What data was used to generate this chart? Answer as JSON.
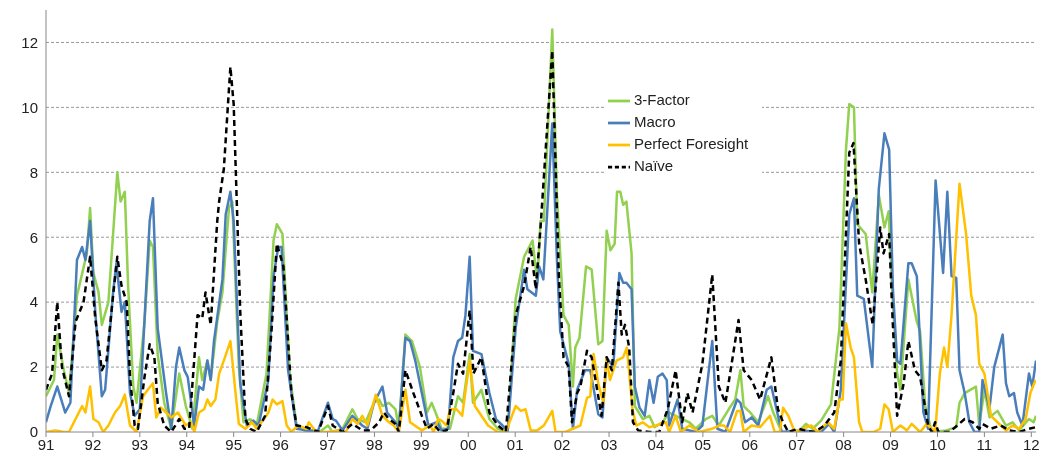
{
  "chart_data": {
    "type": "line",
    "xlim": [
      1991,
      2012.1
    ],
    "ylim": [
      0,
      13
    ],
    "xticks": [
      {
        "value": 1991,
        "label": "91"
      },
      {
        "value": 1992,
        "label": "92"
      },
      {
        "value": 1993,
        "label": "93"
      },
      {
        "value": 1994,
        "label": "94"
      },
      {
        "value": 1995,
        "label": "95"
      },
      {
        "value": 1996,
        "label": "96"
      },
      {
        "value": 1997,
        "label": "97"
      },
      {
        "value": 1998,
        "label": "98"
      },
      {
        "value": 1999,
        "label": "99"
      },
      {
        "value": 2000,
        "label": "00"
      },
      {
        "value": 2001,
        "label": "01"
      },
      {
        "value": 2002,
        "label": "02"
      },
      {
        "value": 2003,
        "label": "03"
      },
      {
        "value": 2004,
        "label": "04"
      },
      {
        "value": 2005,
        "label": "05"
      },
      {
        "value": 2006,
        "label": "06"
      },
      {
        "value": 2007,
        "label": "07"
      },
      {
        "value": 2008,
        "label": "08"
      },
      {
        "value": 2009,
        "label": "09"
      },
      {
        "value": 2010,
        "label": "10"
      },
      {
        "value": 2011,
        "label": "11"
      },
      {
        "value": 2012,
        "label": "12"
      }
    ],
    "yticks": [
      0,
      2,
      4,
      6,
      8,
      10,
      12
    ],
    "grid": "y",
    "legend": "top",
    "marker": "none",
    "series": [
      {
        "name": "3-Factor",
        "color": "#92d050",
        "line_style": "solid",
        "x": [
          1991.0,
          1991.17,
          1991.24,
          1991.38,
          1991.49,
          1991.66,
          1991.87,
          1991.94,
          1992.01,
          1992.12,
          1992.19,
          1992.33,
          1992.43,
          1992.52,
          1992.59,
          1992.68,
          1992.75,
          1992.86,
          1992.93,
          1993.1,
          1993.21,
          1993.28,
          1993.38,
          1993.52,
          1993.67,
          1993.84,
          1993.98,
          1994.12,
          1994.26,
          1994.33,
          1994.44,
          1994.51,
          1994.65,
          1994.76,
          1994.9,
          1994.97,
          1995.11,
          1995.21,
          1995.35,
          1995.49,
          1995.7,
          1995.85,
          1995.92,
          1996.04,
          1996.2,
          1996.34,
          1996.55,
          1996.83,
          1997.01,
          1997.11,
          1997.32,
          1997.53,
          1997.64,
          1997.81,
          1997.99,
          1998.1,
          1998.17,
          1998.31,
          1998.45,
          1998.52,
          1998.66,
          1998.8,
          1998.97,
          1999.12,
          1999.22,
          1999.33,
          1999.43,
          1999.61,
          1999.78,
          1999.89,
          2000.03,
          2000.1,
          2000.28,
          2000.45,
          2000.63,
          2000.84,
          2001.01,
          2001.19,
          2001.37,
          2001.47,
          2001.54,
          2001.61,
          2001.79,
          2001.89,
          2002.03,
          2002.14,
          2002.23,
          2002.28,
          2002.37,
          2002.51,
          2002.63,
          2002.77,
          2002.86,
          2002.95,
          2003.03,
          2003.12,
          2003.17,
          2003.24,
          2003.3,
          2003.37,
          2003.48,
          2003.55,
          2003.72,
          2003.86,
          2003.97,
          2004.14,
          2004.28,
          2004.42,
          2004.71,
          2004.85,
          2005.06,
          2005.2,
          2005.34,
          2005.55,
          2005.69,
          2005.8,
          2005.87,
          2006.01,
          2006.18,
          2006.39,
          2006.5,
          2006.68,
          2007.03,
          2007.2,
          2007.34,
          2007.52,
          2007.73,
          2007.91,
          2008.05,
          2008.12,
          2008.22,
          2008.29,
          2008.47,
          2008.61,
          2008.75,
          2008.87,
          2008.96,
          2009.03,
          2009.14,
          2009.21,
          2009.38,
          2009.56,
          2009.63,
          2009.74,
          2009.88,
          2010.19,
          2010.4,
          2010.47,
          2010.58,
          2010.82,
          2010.89,
          2011.0,
          2011.11,
          2011.28,
          2011.46,
          2011.6,
          2011.74,
          2011.95,
          2012.05,
          2012.1
        ],
        "values": [
          1.1,
          1.6,
          3.0,
          1.9,
          1.2,
          4.2,
          5.5,
          6.9,
          4.9,
          4.3,
          3.3,
          4.0,
          6.1,
          8.0,
          7.1,
          7.4,
          4.5,
          1.4,
          0.9,
          3.4,
          5.9,
          5.7,
          2.4,
          0.9,
          0.1,
          1.8,
          0.8,
          0.1,
          2.3,
          1.6,
          2.2,
          1.6,
          3.4,
          4.3,
          6.9,
          7.1,
          2.0,
          0.3,
          0.4,
          0.2,
          1.8,
          5.9,
          6.4,
          6.1,
          1.7,
          0.2,
          0,
          0,
          0.2,
          0,
          0.1,
          0.7,
          0.4,
          0.3,
          0.9,
          1.0,
          0.8,
          0.9,
          0.7,
          0.1,
          3.0,
          2.8,
          2.0,
          0.6,
          0.9,
          0.5,
          0.1,
          0.1,
          1.1,
          0.9,
          2.4,
          0.9,
          1.3,
          0.4,
          0.1,
          0,
          4.1,
          5.4,
          5.9,
          4.6,
          6.5,
          6.5,
          12.4,
          7.3,
          3.6,
          3.3,
          1.4,
          2.6,
          2.9,
          5.1,
          5.0,
          2.7,
          2.8,
          6.2,
          5.6,
          5.8,
          7.4,
          7.4,
          7.0,
          7.1,
          5.5,
          0.8,
          0.4,
          0.5,
          0.15,
          0.3,
          0.6,
          0.5,
          0.3,
          0.1,
          0.4,
          0.5,
          0.2,
          0.7,
          1.0,
          1.9,
          0.8,
          0.6,
          0.3,
          1.1,
          0.6,
          0,
          0,
          0.25,
          0.1,
          0.35,
          0.85,
          3.2,
          8.7,
          10.1,
          10.0,
          6.4,
          6.1,
          4.3,
          7.3,
          6.3,
          6.8,
          4.5,
          1.8,
          1.3,
          4.7,
          3.4,
          3.1,
          0.8,
          0,
          0.05,
          0.15,
          0.9,
          1.2,
          1.4,
          0.2,
          1.3,
          0.45,
          0.65,
          0.2,
          0.3,
          0.05,
          0.4,
          0.3,
          0.5
        ]
      },
      {
        "name": "Macro",
        "color": "#4a7ebb",
        "line_style": "solid",
        "x": [
          1991.0,
          1991.1,
          1991.24,
          1991.41,
          1991.52,
          1991.66,
          1991.77,
          1991.84,
          1991.94,
          1992.05,
          1992.19,
          1992.26,
          1992.43,
          1992.5,
          1992.61,
          1992.68,
          1992.79,
          1992.89,
          1993.0,
          1993.21,
          1993.28,
          1993.38,
          1993.56,
          1993.67,
          1993.77,
          1993.84,
          1993.95,
          1994.02,
          1994.16,
          1994.26,
          1994.35,
          1994.44,
          1994.51,
          1994.58,
          1994.76,
          1994.83,
          1994.93,
          1995.0,
          1995.14,
          1995.28,
          1995.42,
          1995.53,
          1995.74,
          1995.85,
          1995.95,
          1996.02,
          1996.16,
          1996.34,
          1996.55,
          1996.8,
          1997.01,
          1997.11,
          1997.18,
          1997.32,
          1997.53,
          1997.74,
          1997.85,
          1997.99,
          1998.17,
          1998.27,
          1998.45,
          1998.52,
          1998.66,
          1998.76,
          1998.87,
          1999.08,
          1999.15,
          1999.33,
          1999.43,
          1999.57,
          1999.68,
          1999.78,
          1999.87,
          1999.94,
          2000.03,
          2000.1,
          2000.28,
          2000.45,
          2000.59,
          2000.73,
          2000.84,
          2001.01,
          2001.19,
          2001.26,
          2001.44,
          2001.51,
          2001.6,
          2001.79,
          2001.89,
          2001.96,
          2002.14,
          2002.23,
          2002.32,
          2002.49,
          2002.6,
          2002.77,
          2002.86,
          2002.95,
          2003.09,
          2003.22,
          2003.3,
          2003.37,
          2003.48,
          2003.55,
          2003.65,
          2003.76,
          2003.86,
          2003.95,
          2004.04,
          2004.14,
          2004.23,
          2004.28,
          2004.46,
          2004.56,
          2004.85,
          2004.99,
          2005.2,
          2005.31,
          2005.48,
          2005.73,
          2005.8,
          2005.9,
          2006.04,
          2006.18,
          2006.36,
          2006.46,
          2006.68,
          2007.1,
          2007.52,
          2007.69,
          2007.8,
          2007.94,
          2008.12,
          2008.22,
          2008.29,
          2008.43,
          2008.61,
          2008.75,
          2008.87,
          2008.97,
          2009.05,
          2009.14,
          2009.21,
          2009.38,
          2009.45,
          2009.56,
          2009.7,
          2009.8,
          2009.96,
          2010.12,
          2010.21,
          2010.3,
          2010.4,
          2010.47,
          2010.58,
          2010.68,
          2010.79,
          2010.89,
          2010.96,
          2011.11,
          2011.21,
          2011.39,
          2011.46,
          2011.53,
          2011.63,
          2011.7,
          2011.81,
          2011.95,
          2012.02,
          2012.1
        ],
        "values": [
          0.3,
          0.8,
          1.4,
          0.6,
          0.9,
          5.3,
          5.7,
          5.3,
          6.5,
          3.7,
          1.1,
          1.3,
          4.3,
          5.2,
          3.7,
          4.0,
          1.2,
          0.5,
          0.7,
          6.5,
          7.2,
          3.2,
          1.2,
          0.1,
          2.0,
          2.6,
          1.9,
          1.7,
          0.2,
          1.4,
          1.3,
          2.2,
          1.6,
          2.8,
          4.7,
          6.7,
          7.4,
          6.5,
          1.5,
          0.2,
          0.35,
          0.2,
          1.6,
          4.8,
          5.7,
          5.7,
          1.9,
          0.1,
          0.05,
          0.05,
          0.9,
          0.4,
          0.35,
          0.05,
          0.5,
          0.2,
          0.1,
          0.9,
          1.4,
          0.6,
          0.3,
          0.1,
          2.9,
          2.8,
          2.2,
          0.7,
          0.2,
          0.3,
          0.05,
          0.1,
          2.3,
          2.8,
          2.9,
          3.6,
          5.4,
          2.5,
          2.4,
          1.2,
          0.4,
          0.2,
          0.05,
          3.2,
          5.0,
          4.4,
          4.2,
          5.1,
          4.7,
          9.5,
          5.3,
          3.1,
          2.1,
          0.1,
          1.3,
          1.9,
          1.9,
          0.55,
          0.45,
          2.3,
          2.0,
          4.9,
          4.6,
          4.6,
          4.4,
          1.4,
          0.75,
          0.5,
          1.6,
          0.9,
          1.7,
          1.8,
          1.6,
          0.2,
          1.0,
          0.1,
          0,
          0.2,
          2.8,
          0.1,
          0,
          1.0,
          0.9,
          0.3,
          0.45,
          0.2,
          1.3,
          1.4,
          0,
          0.05,
          0,
          0.25,
          0,
          1.3,
          6.7,
          7.2,
          4.2,
          4.1,
          2.0,
          7.5,
          9.2,
          8.7,
          4.4,
          2.2,
          2.1,
          5.2,
          5.2,
          4.8,
          0.6,
          0.1,
          7.75,
          4.9,
          7.4,
          4.8,
          4.75,
          1.9,
          1.2,
          0.3,
          0,
          0,
          1.6,
          0.75,
          2.0,
          3.0,
          1.5,
          1.1,
          1.2,
          0.6,
          0.2,
          1.8,
          1.4,
          2.2
        ]
      },
      {
        "name": "Perfect Foresight",
        "color": "#ffc000",
        "line_style": "solid",
        "x": [
          1991.0,
          1991.2,
          1991.38,
          1991.49,
          1991.77,
          1991.84,
          1991.94,
          1992.01,
          1992.12,
          1992.22,
          1992.33,
          1992.47,
          1992.58,
          1992.68,
          1992.79,
          1992.93,
          1993.07,
          1993.17,
          1993.28,
          1993.35,
          1993.45,
          1993.56,
          1993.67,
          1993.81,
          1993.98,
          1994.09,
          1994.16,
          1994.26,
          1994.37,
          1994.44,
          1994.51,
          1994.61,
          1994.69,
          1994.79,
          1994.93,
          1995.04,
          1995.11,
          1995.25,
          1995.39,
          1995.49,
          1995.67,
          1995.74,
          1995.83,
          1995.92,
          1996.04,
          1996.13,
          1996.23,
          1996.37,
          1996.55,
          1996.6,
          1996.76,
          1996.97,
          1997.25,
          1997.39,
          1997.53,
          1997.64,
          1997.74,
          1997.85,
          1998.03,
          1998.17,
          1998.31,
          1998.41,
          1998.52,
          1998.66,
          1998.76,
          1999.01,
          1999.19,
          1999.26,
          1999.36,
          1999.43,
          1999.54,
          1999.61,
          1999.75,
          1999.87,
          2000.03,
          2000.14,
          2000.28,
          2000.42,
          2000.63,
          2000.8,
          2001.01,
          2001.12,
          2001.22,
          2001.33,
          2001.47,
          2001.61,
          2001.79,
          2001.86,
          2002.07,
          2002.39,
          2002.53,
          2002.6,
          2002.67,
          2002.77,
          2002.88,
          2002.95,
          2003.02,
          2003.16,
          2003.3,
          2003.38,
          2003.5,
          2003.58,
          2003.72,
          2003.86,
          2004.0,
          2004.21,
          2004.28,
          2004.42,
          2004.53,
          2004.71,
          2004.92,
          2005.2,
          2005.34,
          2005.45,
          2005.58,
          2005.73,
          2005.8,
          2005.87,
          2006.04,
          2006.22,
          2006.43,
          2006.53,
          2006.64,
          2006.71,
          2006.82,
          2006.96,
          2007.13,
          2007.31,
          2007.45,
          2007.66,
          2007.8,
          2007.91,
          2007.98,
          2008.05,
          2008.15,
          2008.22,
          2008.33,
          2008.4,
          2008.64,
          2008.78,
          2008.87,
          2008.96,
          2009.05,
          2009.21,
          2009.35,
          2009.45,
          2009.63,
          2009.77,
          2009.88,
          2009.95,
          2010.05,
          2010.14,
          2010.21,
          2010.3,
          2010.47,
          2010.61,
          2010.72,
          2010.82,
          2010.89,
          2011.0,
          2011.14,
          2011.28,
          2011.46,
          2011.6,
          2011.74,
          2011.88,
          2011.98,
          2012.09
        ],
        "values": [
          0,
          0.05,
          0,
          0,
          0.8,
          0.6,
          1.4,
          0.4,
          0.3,
          0,
          0.2,
          0.6,
          0.8,
          1.15,
          0.2,
          0,
          1.1,
          1.3,
          1.5,
          0.45,
          0.75,
          0.6,
          0.45,
          0.6,
          0.2,
          0.3,
          0,
          0.6,
          0.7,
          1.0,
          0.8,
          1.0,
          1.8,
          2.2,
          2.8,
          1.2,
          0.25,
          0.1,
          0.3,
          0.1,
          0.45,
          0.6,
          1.0,
          0.85,
          0.95,
          0.2,
          0,
          0.2,
          0.1,
          0.3,
          0,
          0,
          0.05,
          0,
          0.4,
          0.25,
          0.5,
          0.2,
          1.15,
          0.5,
          0.3,
          0.2,
          0,
          1.3,
          0.3,
          0.05,
          0.2,
          0,
          0.4,
          0.35,
          0.2,
          0.7,
          0.7,
          0.5,
          2.2,
          0.8,
          0.5,
          0.2,
          0,
          0,
          0.8,
          0.65,
          0.7,
          0.05,
          0.05,
          0.2,
          0.65,
          0,
          0,
          0.2,
          1.05,
          1.1,
          2.4,
          1.5,
          0.9,
          2.3,
          1.6,
          2.2,
          2.3,
          2.6,
          0.7,
          0.2,
          0.3,
          0.15,
          0.2,
          0.3,
          0,
          0.5,
          0,
          0.2,
          0,
          0.1,
          0.2,
          0.2,
          0,
          0.65,
          0.65,
          0,
          0.2,
          0.15,
          0.5,
          0,
          0,
          0.75,
          0.5,
          0,
          0.1,
          0.2,
          0,
          0.3,
          0.1,
          1.0,
          1.0,
          3.35,
          2.6,
          2.3,
          0.3,
          0,
          0,
          0.1,
          0.85,
          0.7,
          0,
          0.2,
          0.05,
          0.25,
          0,
          0.25,
          0.1,
          0,
          1.8,
          2.6,
          2.0,
          3.6,
          7.65,
          6.1,
          4.2,
          3.6,
          2.1,
          1.8,
          0.5,
          0.3,
          0.05,
          0.2,
          0.1,
          0.4,
          1.2,
          1.6
        ]
      },
      {
        "name": "Naïve",
        "color": "#000000",
        "line_style": "dashed",
        "x": [
          1991.0,
          1991.13,
          1991.24,
          1991.34,
          1991.49,
          1991.63,
          1991.8,
          1991.94,
          1992.05,
          1992.19,
          1992.29,
          1992.43,
          1992.52,
          1992.61,
          1992.72,
          1992.79,
          1992.89,
          1992.96,
          1993.1,
          1993.21,
          1993.31,
          1993.38,
          1993.52,
          1993.67,
          1993.84,
          1993.95,
          1994.05,
          1994.23,
          1994.33,
          1994.4,
          1994.51,
          1994.65,
          1994.69,
          1994.79,
          1994.93,
          1995.0,
          1995.14,
          1995.25,
          1995.35,
          1995.49,
          1995.67,
          1995.81,
          1995.92,
          1996.06,
          1996.23,
          1996.34,
          1996.55,
          1996.8,
          1997.01,
          1997.11,
          1997.32,
          1997.53,
          1997.74,
          1997.92,
          1998.1,
          1998.2,
          1998.31,
          1998.45,
          1998.52,
          1998.66,
          1998.83,
          1999.01,
          1999.12,
          1999.26,
          1999.4,
          1999.54,
          1999.68,
          1999.78,
          1999.89,
          2000.03,
          2000.11,
          2000.28,
          2000.45,
          2000.63,
          2000.8,
          2001.01,
          2001.19,
          2001.33,
          2001.44,
          2001.54,
          2001.79,
          2001.93,
          2002.03,
          2002.14,
          2002.21,
          2002.32,
          2002.39,
          2002.53,
          2002.63,
          2002.84,
          2002.95,
          2003.06,
          2003.2,
          2003.27,
          2003.34,
          2003.43,
          2003.51,
          2003.62,
          2003.86,
          2004.07,
          2004.25,
          2004.42,
          2004.56,
          2004.67,
          2004.78,
          2004.99,
          2005.2,
          2005.34,
          2005.48,
          2005.58,
          2005.76,
          2005.87,
          2006.04,
          2006.22,
          2006.46,
          2006.6,
          2006.71,
          2006.82,
          2007.03,
          2007.17,
          2007.38,
          2007.59,
          2007.8,
          2007.94,
          2008.12,
          2008.21,
          2008.33,
          2008.47,
          2008.62,
          2008.78,
          2008.85,
          2008.97,
          2009.04,
          2009.14,
          2009.28,
          2009.38,
          2009.52,
          2009.63,
          2009.8,
          2009.88,
          2009.95,
          2010.02,
          2010.26,
          2010.58,
          2010.75,
          2010.89,
          2010.96,
          2011.14,
          2011.35,
          2011.53,
          2011.74,
          2011.95,
          2012.1
        ],
        "values": [
          1.3,
          1.8,
          4.0,
          2.0,
          1.1,
          3.4,
          4.0,
          5.4,
          3.5,
          1.9,
          2.2,
          4.2,
          5.4,
          4.5,
          4.0,
          1.7,
          0.2,
          0.1,
          1.7,
          2.7,
          2.3,
          0.9,
          0.2,
          0,
          0.4,
          0.1,
          0.1,
          3.6,
          3.5,
          4.3,
          3.3,
          6.5,
          7.1,
          8.1,
          11.25,
          10.1,
          3.7,
          0.4,
          0.1,
          0,
          0.5,
          3.2,
          5.8,
          5.1,
          1.2,
          0.2,
          0.15,
          0,
          0.8,
          0.2,
          0,
          0.25,
          0.05,
          0.05,
          0.3,
          0.6,
          0.4,
          0.25,
          0,
          1.9,
          1.2,
          0.5,
          0.1,
          0.25,
          0,
          0.05,
          1.2,
          2.1,
          1.8,
          3.75,
          1.8,
          2.3,
          0.6,
          0.2,
          0,
          3.6,
          4.5,
          5.7,
          4.4,
          6.3,
          11.75,
          4.8,
          2.3,
          2.0,
          0.3,
          1.2,
          1.4,
          2.5,
          2.3,
          0.5,
          2.3,
          1.9,
          4.6,
          3.0,
          3.3,
          2.6,
          0.3,
          0.05,
          0,
          0,
          0.7,
          1.9,
          0.3,
          1.2,
          0.6,
          2.1,
          4.85,
          1.4,
          0.9,
          1.8,
          3.45,
          1.9,
          1.6,
          1.0,
          2.3,
          0.7,
          0.3,
          0,
          0.1,
          0.05,
          0,
          0.2,
          0.6,
          2.2,
          8.6,
          8.9,
          5.8,
          4.7,
          3.3,
          6.3,
          5.5,
          6.1,
          3.6,
          0.5,
          1.5,
          2.8,
          1.9,
          1.7,
          0.2,
          0,
          0.3,
          0,
          0,
          0.4,
          0.3,
          0.1,
          0.25,
          0.1,
          0.2,
          0.05,
          0,
          0.1,
          0.15
        ]
      }
    ]
  }
}
